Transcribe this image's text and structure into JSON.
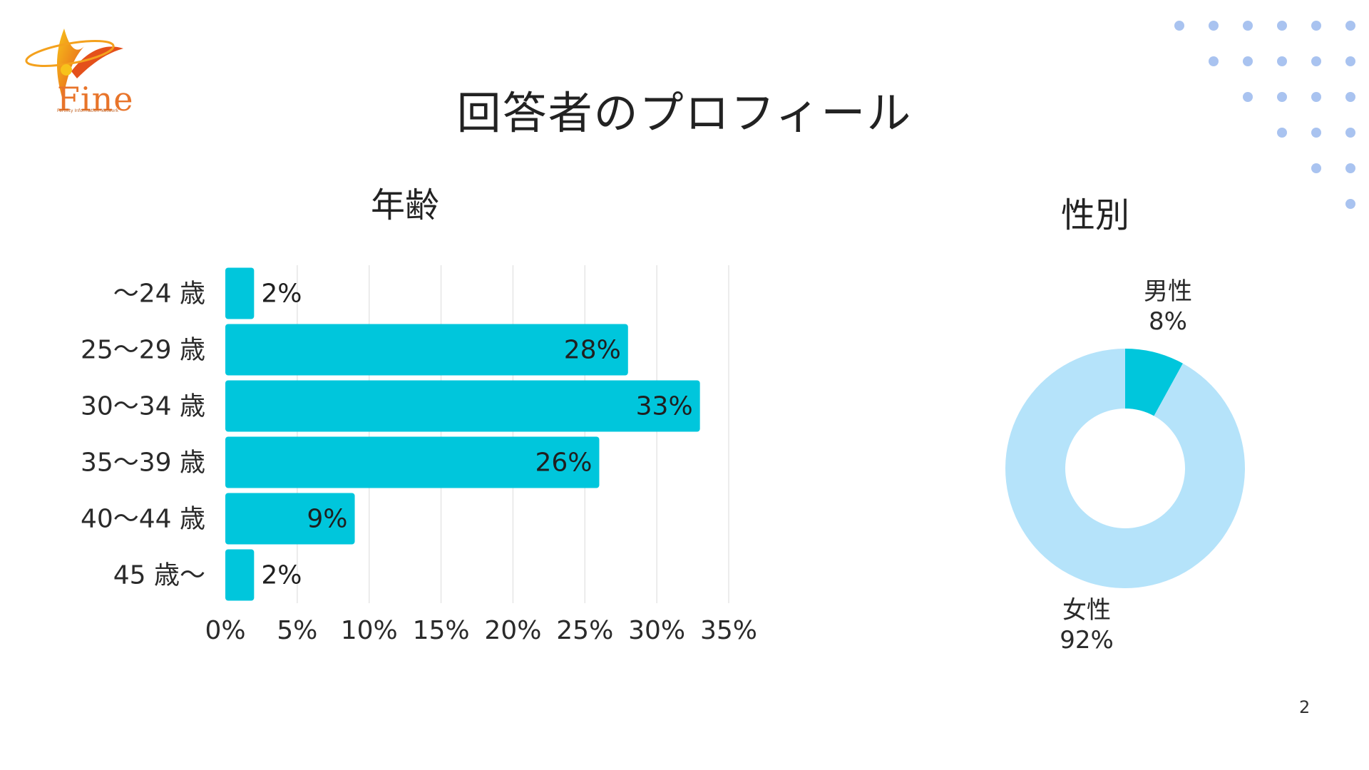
{
  "slide": {
    "title": "回答者のプロフィール",
    "page_number": "2",
    "logo_text": "Fine",
    "logo_subtext": "Fertility Information Network"
  },
  "chart_data": [
    {
      "type": "bar",
      "orientation": "horizontal",
      "title": "年齢",
      "categories": [
        "〜24 歳",
        "25〜29 歳",
        "30〜34 歳",
        "35〜39 歳",
        "40〜44 歳",
        "45 歳〜"
      ],
      "values": [
        2,
        28,
        33,
        26,
        9,
        2
      ],
      "value_labels": [
        "2%",
        "28%",
        "33%",
        "26%",
        "9%",
        "2%"
      ],
      "xlim": [
        0,
        35
      ],
      "x_ticks": [
        "0%",
        "5%",
        "10%",
        "15%",
        "20%",
        "25%",
        "30%",
        "35%"
      ],
      "grid": "vertical",
      "color": "#00c6dc"
    },
    {
      "type": "pie",
      "variant": "donut",
      "title": "性別",
      "labels": [
        "男性",
        "女性"
      ],
      "values": [
        8,
        92
      ],
      "value_labels": [
        "8%",
        "92%"
      ],
      "colors": [
        "#00c6dc",
        "#b5e3fa"
      ]
    }
  ],
  "colors": {
    "accent": "#00c6dc",
    "light_blue": "#b5e3fa",
    "dot_blue": "#a9c3f0",
    "logo_orange": "#e8742a"
  }
}
